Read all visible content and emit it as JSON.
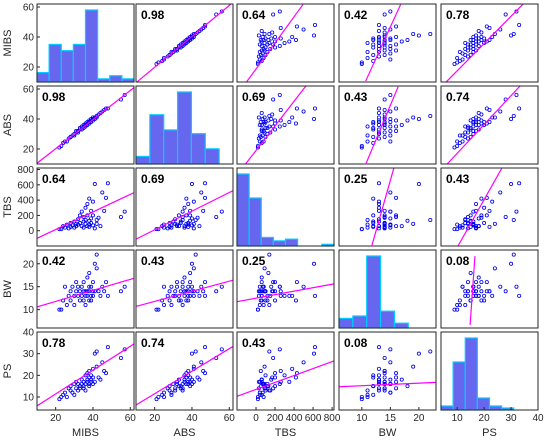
{
  "chart_data": {
    "type": "scatter-matrix",
    "variables": [
      "MIBS",
      "ABS",
      "TBS",
      "BW",
      "PS"
    ],
    "ranges": {
      "MIBS": [
        10,
        62
      ],
      "ABS": [
        10,
        62
      ],
      "TBS": [
        -200,
        820
      ],
      "BW": [
        6,
        23
      ],
      "PS": [
        4,
        40
      ]
    },
    "ticks": {
      "MIBS": [
        20,
        40,
        60
      ],
      "ABS": [
        20,
        40,
        60
      ],
      "TBS": [
        0,
        200,
        400,
        600,
        800
      ],
      "BW": [
        10,
        15,
        20
      ],
      "PS": [
        10,
        20,
        30,
        40
      ]
    },
    "correlations": [
      [
        null,
        "0.98",
        "0.64",
        "0.42",
        "0.78"
      ],
      [
        "0.98",
        null,
        "0.69",
        "0.43",
        "0.74"
      ],
      [
        "0.64",
        "0.69",
        null,
        "0.25",
        "0.43"
      ],
      [
        "0.42",
        "0.43",
        "0.25",
        null,
        "0.08"
      ],
      [
        "0.78",
        "0.74",
        "0.43",
        "0.08",
        null
      ]
    ],
    "histograms": [
      {
        "var": "MIBS",
        "edges": [
          14,
          20,
          26,
          32,
          38,
          44,
          50,
          56,
          62
        ],
        "counts": [
          3,
          12,
          10,
          12,
          23,
          1,
          2,
          1
        ]
      },
      {
        "var": "ABS",
        "edges": [
          13.5,
          20,
          26.5,
          33,
          39.5,
          46,
          52.5,
          59
        ],
        "counts": [
          2,
          13,
          9,
          19,
          8,
          4,
          0
        ]
      },
      {
        "var": "TBS",
        "edges": [
          -60,
          50,
          160,
          270,
          380,
          490,
          600,
          710,
          820
        ],
        "counts": [
          42,
          28,
          5,
          3,
          4,
          0,
          0,
          1
        ]
      },
      {
        "var": "BW",
        "edges": [
          8,
          10,
          12,
          14,
          16,
          18,
          20,
          22
        ],
        "counts": [
          8,
          10,
          60,
          14,
          4,
          0,
          0
        ]
      },
      {
        "var": "PS",
        "edges": [
          5,
          8.5,
          12,
          15.5,
          19,
          22.5,
          26,
          29.5,
          33
        ],
        "counts": [
          2,
          24,
          36,
          6,
          2,
          1,
          0,
          0
        ]
      }
    ],
    "fits": [
      {
        "x": "MIBS",
        "y": "ABS",
        "slope": 0.97,
        "intercept": 0.8
      },
      {
        "x": "MIBS",
        "y": "TBS",
        "slope": 11.5,
        "intercept": -215
      },
      {
        "x": "MIBS",
        "y": "BW",
        "slope": 0.12,
        "intercept": 9.4
      },
      {
        "x": "MIBS",
        "y": "PS",
        "slope": 0.55,
        "intercept": 0.4
      },
      {
        "x": "ABS",
        "y": "TBS",
        "slope": 12.2,
        "intercept": -232
      },
      {
        "x": "ABS",
        "y": "BW",
        "slope": 0.11,
        "intercept": 9.6
      },
      {
        "x": "ABS",
        "y": "PS",
        "slope": 0.52,
        "intercept": 1.1
      },
      {
        "x": "TBS",
        "y": "BW",
        "slope": 0.0038,
        "intercept": 12.5
      },
      {
        "x": "TBS",
        "y": "PS",
        "slope": 0.016,
        "intercept": 13.5
      },
      {
        "x": "BW",
        "y": "PS",
        "slope": 0.12,
        "intercept": 14.0
      }
    ],
    "points": {
      "MIBS": [
        22,
        24,
        25,
        26,
        27,
        28,
        28,
        29,
        30,
        30,
        31,
        31,
        32,
        32,
        33,
        33,
        34,
        34,
        35,
        35,
        35,
        36,
        36,
        36,
        37,
        37,
        37,
        38,
        38,
        38,
        38,
        39,
        39,
        39,
        40,
        40,
        40,
        41,
        41,
        42,
        42,
        43,
        44,
        45,
        46,
        47,
        48,
        55,
        57,
        23
      ],
      "ABS": [
        21,
        24,
        25,
        25,
        27,
        28,
        28,
        29,
        30,
        29,
        31,
        32,
        31,
        32,
        33,
        34,
        33,
        35,
        34,
        36,
        35,
        36,
        37,
        35,
        36,
        38,
        37,
        38,
        37,
        39,
        38,
        39,
        40,
        38,
        40,
        41,
        39,
        41,
        40,
        42,
        41,
        43,
        44,
        45,
        46,
        47,
        47,
        53,
        56,
        22
      ],
      "TBS": [
        20,
        60,
        40,
        80,
        30,
        100,
        50,
        70,
        120,
        40,
        90,
        60,
        150,
        80,
        200,
        100,
        60,
        250,
        120,
        40,
        180,
        300,
        90,
        140,
        60,
        350,
        200,
        80,
        420,
        130,
        50,
        260,
        160,
        100,
        70,
        380,
        200,
        30,
        610,
        140,
        90,
        170,
        60,
        500,
        260,
        430,
        620,
        180,
        250,
        20
      ],
      "BW": [
        10,
        12,
        15,
        11,
        13,
        14,
        12,
        15,
        13,
        11,
        14,
        16,
        13,
        15,
        12,
        14,
        13,
        15,
        12,
        14,
        16,
        13,
        14,
        11,
        17,
        13,
        14,
        15,
        12,
        18,
        14,
        13,
        15,
        12,
        14,
        13,
        16,
        14,
        20,
        22,
        19,
        14,
        13,
        15,
        14,
        16,
        13,
        14,
        15,
        10
      ],
      "PS": [
        9,
        11,
        12,
        10,
        14,
        13,
        15,
        12,
        16,
        11,
        14,
        17,
        13,
        16,
        15,
        14,
        18,
        16,
        15,
        17,
        14,
        20,
        16,
        13,
        18,
        17,
        21,
        16,
        19,
        15,
        22,
        17,
        18,
        20,
        16,
        23,
        19,
        17,
        30,
        31,
        24,
        19,
        18,
        26,
        22,
        21,
        33,
        28,
        32,
        10
      ]
    },
    "bar_color": "#6666ee",
    "bar_edge": "#00ccff",
    "point_color": "#0000ee",
    "fit_color": "#ff00ff"
  }
}
